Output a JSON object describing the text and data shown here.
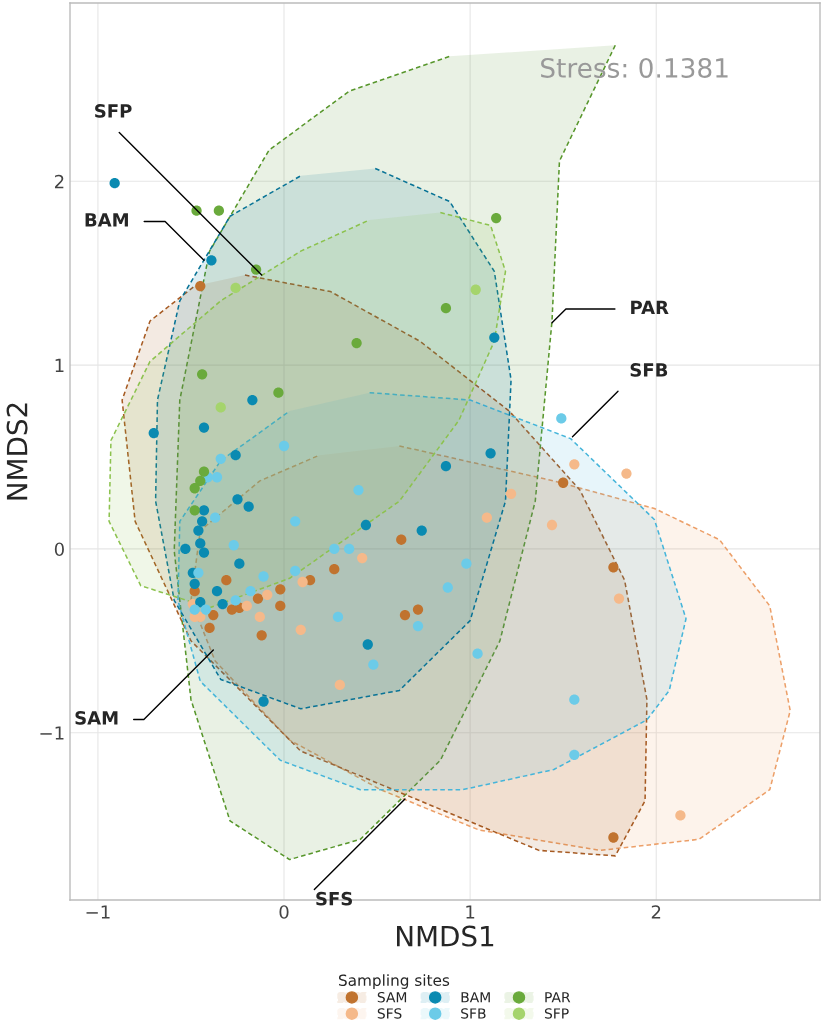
{
  "chart_data": {
    "type": "scatter",
    "xlabel": "NMDS1",
    "ylabel": "NMDS2",
    "legend_title": "Sampling sites",
    "legend": "bottom",
    "grid": true,
    "xlim": [
      -1.15,
      2.88
    ],
    "ylim": [
      -1.91,
      2.97
    ],
    "xticks": [
      {
        "value": -1,
        "label": "−1"
      },
      0,
      1,
      2
    ],
    "yticks": [
      {
        "value": -1,
        "label": "−1"
      },
      0,
      1,
      2
    ],
    "annotations": [
      "Stress: 0.1381",
      {
        "text": "SFP",
        "x": -0.12,
        "y": 1.49
      },
      {
        "text": "BAM",
        "x": -0.43,
        "y": 1.57
      },
      {
        "text": "PAR",
        "x": 1.44,
        "y": 1.23
      },
      {
        "text": "SFB",
        "x": 1.55,
        "y": 0.61
      },
      {
        "text": "SAM",
        "x": -0.38,
        "y": -0.55
      },
      {
        "text": "SFS",
        "x": 0.65,
        "y": -1.36
      }
    ],
    "series": [
      {
        "marker": "circle",
        "name": "SAM",
        "color": "#c0732f",
        "x": [
          -0.45,
          1.5,
          1.77,
          1.77,
          0.63,
          0.27,
          0.14,
          -0.02,
          -0.31,
          -0.14,
          -0.02,
          -0.24,
          -0.28,
          -0.38,
          -0.4,
          -0.12,
          0.65,
          0.72,
          -0.48
        ],
        "values": [
          1.43,
          0.36,
          -0.1,
          -1.57,
          0.05,
          -0.11,
          -0.17,
          -0.22,
          -0.17,
          -0.27,
          -0.31,
          -0.32,
          -0.33,
          -0.36,
          -0.43,
          -0.47,
          -0.36,
          -0.33,
          -0.23
        ]
      },
      {
        "marker": "circle",
        "name": "SFS",
        "color": "#f5b98a",
        "x": [
          1.56,
          1.84,
          1.22,
          1.09,
          1.44,
          1.8,
          2.13,
          0.42,
          0.1,
          -0.09,
          -0.2,
          -0.13,
          0.09,
          0.3,
          -0.45,
          -0.48,
          -0.49
        ],
        "values": [
          0.46,
          0.41,
          0.3,
          0.17,
          0.13,
          -0.27,
          -1.45,
          -0.05,
          -0.18,
          -0.25,
          -0.31,
          -0.37,
          -0.44,
          -0.74,
          -0.37,
          -0.37,
          -0.3
        ]
      },
      {
        "marker": "circle",
        "name": "BAM",
        "color": "#0a8ab1",
        "x": [
          -0.91,
          -0.39,
          -0.7,
          -0.43,
          -0.17,
          -0.26,
          0.87,
          -0.25,
          -0.19,
          -0.43,
          -0.44,
          -0.46,
          0.44,
          0.74,
          -0.53,
          -0.45,
          -0.43,
          1.13,
          1.11,
          -0.49,
          -0.48,
          -0.36,
          -0.45,
          -0.33,
          -0.24,
          0.45,
          -0.11
        ],
        "values": [
          1.99,
          1.57,
          0.63,
          0.66,
          0.81,
          0.51,
          0.45,
          0.27,
          0.23,
          0.21,
          0.15,
          0.1,
          0.13,
          0.1,
          0.0,
          0.03,
          -0.02,
          1.15,
          0.52,
          -0.13,
          -0.19,
          -0.23,
          -0.29,
          -0.3,
          -0.08,
          -0.52,
          -0.83
        ]
      },
      {
        "marker": "circle",
        "name": "SFB",
        "color": "#6ccbe8",
        "x": [
          1.49,
          0.98,
          0.88,
          1.04,
          1.56,
          1.56,
          0.0,
          -0.34,
          -0.41,
          -0.36,
          0.4,
          -0.37,
          0.06,
          -0.27,
          0.27,
          0.35,
          0.06,
          -0.11,
          -0.18,
          -0.26,
          -0.46,
          -0.42,
          -0.48,
          0.29,
          0.72,
          0.48
        ],
        "values": [
          0.71,
          -0.08,
          -0.21,
          -0.57,
          -0.82,
          -1.12,
          0.56,
          0.49,
          0.39,
          0.39,
          0.32,
          0.17,
          0.15,
          0.02,
          0.0,
          0.0,
          -0.12,
          -0.15,
          -0.23,
          -0.28,
          -0.13,
          -0.33,
          -0.33,
          -0.37,
          -0.42,
          -0.63
        ]
      },
      {
        "marker": "circle",
        "name": "PAR",
        "color": "#6aaa3c",
        "x": [
          -0.47,
          -0.35,
          -0.15,
          0.87,
          0.39,
          -0.44,
          -0.03,
          -0.43,
          -0.45,
          -0.48,
          -0.48,
          1.14
        ],
        "values": [
          1.84,
          1.84,
          1.52,
          1.31,
          1.12,
          0.95,
          0.85,
          0.42,
          0.37,
          0.33,
          0.21,
          1.8
        ]
      },
      {
        "marker": "circle",
        "name": "SFP",
        "color": "#a5d46c",
        "x": [
          -0.26,
          -0.34,
          1.03
        ],
        "values": [
          1.42,
          0.77,
          1.41
        ]
      },
      {
        "type": "area",
        "line_style": "dashed",
        "color": "#ec9f68",
        "x": [
          0.62,
          1.45,
          1.99,
          2.34,
          2.61,
          2.72,
          2.61,
          2.23,
          1.7,
          1.05,
          0.52,
          0.03,
          -0.37,
          -0.5,
          -0.45,
          -0.13,
          0.19,
          0.62
        ],
        "values": [
          0.56,
          0.37,
          0.22,
          0.05,
          -0.31,
          -0.88,
          -1.31,
          -1.58,
          -1.64,
          -1.53,
          -1.31,
          -1.04,
          -0.61,
          -0.28,
          0.1,
          0.37,
          0.51,
          0.56
        ]
      },
      {
        "type": "area",
        "line_style": "dashed",
        "color": "#57962b",
        "x": [
          1.78,
          1.48,
          1.44,
          1.35,
          1.16,
          0.84,
          0.41,
          0.03,
          -0.29,
          -0.5,
          -0.59,
          -0.56,
          -0.4,
          -0.08,
          0.35,
          0.89,
          1.78
        ],
        "values": [
          2.74,
          2.11,
          1.24,
          0.26,
          -0.5,
          -1.15,
          -1.58,
          -1.69,
          -1.48,
          -0.82,
          -0.01,
          0.81,
          1.62,
          2.17,
          2.49,
          2.68,
          2.74
        ]
      },
      {
        "type": "area",
        "line_style": "dashed",
        "color": "#a65a22",
        "x": [
          -0.21,
          0.25,
          0.73,
          1.21,
          1.59,
          1.83,
          1.95,
          1.94,
          1.78,
          1.37,
          0.73,
          0.09,
          -0.5,
          -0.8,
          -0.87,
          -0.72,
          -0.48,
          -0.21
        ],
        "values": [
          1.49,
          1.4,
          1.13,
          0.75,
          0.32,
          -0.17,
          -0.82,
          -1.37,
          -1.67,
          -1.64,
          -1.37,
          -1.1,
          -0.5,
          0.15,
          0.81,
          1.24,
          1.43,
          1.49
        ]
      },
      {
        "type": "area",
        "line_style": "dashed",
        "color": "#45b5da",
        "x": [
          0.46,
          1.0,
          1.54,
          1.99,
          2.16,
          2.07,
          1.95,
          1.45,
          0.96,
          0.41,
          -0.02,
          -0.45,
          -0.57,
          -0.56,
          -0.34,
          0.03,
          0.46
        ],
        "values": [
          0.85,
          0.81,
          0.6,
          0.16,
          -0.38,
          -0.77,
          -0.93,
          -1.2,
          -1.31,
          -1.31,
          -1.15,
          -0.72,
          -0.28,
          0.15,
          0.48,
          0.75,
          0.85
        ]
      },
      {
        "type": "area",
        "line_style": "dashed",
        "color": "#087396",
        "x": [
          0.49,
          0.89,
          1.13,
          1.22,
          1.19,
          1.0,
          0.62,
          0.09,
          -0.34,
          -0.59,
          -0.69,
          -0.68,
          -0.56,
          -0.29,
          0.09,
          0.49
        ],
        "values": [
          2.07,
          1.89,
          1.51,
          0.92,
          0.26,
          -0.39,
          -0.77,
          -0.87,
          -0.71,
          -0.28,
          0.26,
          0.81,
          1.35,
          1.81,
          2.03,
          2.07
        ]
      },
      {
        "type": "area",
        "line_style": "dashed",
        "color": "#8cc24e",
        "x": [
          0.84,
          1.11,
          1.19,
          1.13,
          0.94,
          0.62,
          0.03,
          -0.4,
          -0.77,
          -0.94,
          -0.93,
          -0.72,
          -0.34,
          0.09,
          0.46,
          0.84
        ],
        "values": [
          1.83,
          1.76,
          1.51,
          1.13,
          0.7,
          0.26,
          -0.16,
          -0.32,
          -0.2,
          0.15,
          0.59,
          1.02,
          1.35,
          1.62,
          1.79,
          1.83
        ]
      }
    ]
  }
}
